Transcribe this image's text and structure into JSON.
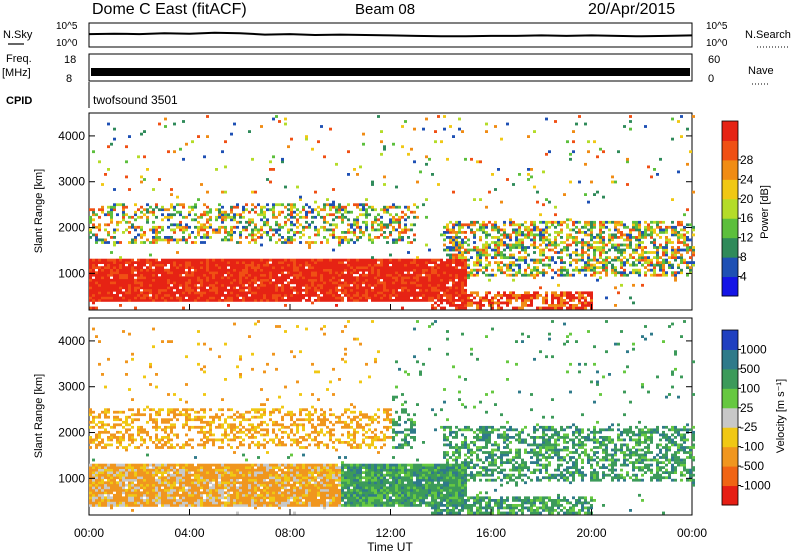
{
  "header": {
    "radar": "Dome C East (fitACF)",
    "beam": "Beam 08",
    "date": "20/Apr/2015"
  },
  "top_panels": {
    "nsky_label": "N.Sky",
    "nsearch_label": "N.Search",
    "freq_label": "Freq.",
    "freq_unit": "[MHz]",
    "nave_label": "Nave",
    "cpid_label": "CPID",
    "cpid_value": "twofsound 3501"
  },
  "chart_data": [
    {
      "type": "line",
      "title": "N.Sky / N.Search",
      "ylabel_left": "N.Sky",
      "ylabel_right": "N.Search",
      "ytick_labels": [
        "10^5",
        "10^0"
      ],
      "ylim": [
        0,
        5
      ],
      "x_hours": [
        0,
        1,
        2,
        3,
        4,
        5,
        6,
        7,
        8,
        9,
        10,
        11,
        12,
        13,
        14,
        15,
        16,
        17,
        18,
        19,
        20,
        21,
        22,
        23,
        24
      ],
      "values": [
        2.7,
        2.8,
        2.7,
        2.9,
        2.8,
        3.0,
        2.9,
        2.6,
        2.7,
        2.5,
        2.6,
        2.5,
        2.4,
        2.3,
        2.2,
        2.2,
        2.3,
        2.3,
        2.4,
        2.3,
        2.4,
        2.3,
        2.2,
        2.3,
        2.4
      ]
    },
    {
      "type": "line",
      "title": "Freq / Nave",
      "ylabel_left": "[MHz]",
      "ylabel_right": "Nave",
      "left_ticks": [
        "18",
        "8"
      ],
      "right_ticks": [
        "60",
        "0"
      ],
      "freq_range": [
        8,
        18
      ],
      "nave_range": [
        0,
        60
      ],
      "freq_level": 11
    },
    {
      "type": "heatmap",
      "title": "Power",
      "ylabel": "Slant Range [km]",
      "xlabel": "Time UT",
      "ylim": [
        200,
        4500
      ],
      "xlim": [
        0,
        24
      ],
      "yticks": [
        1000,
        2000,
        3000,
        4000
      ],
      "colorbar_label": "Power [dB]",
      "colorbar_ticks": [
        "4",
        "8",
        "12",
        "16",
        "20",
        "24",
        "28"
      ],
      "colorbar_colors": [
        "#1414e6",
        "#1e50b4",
        "#2f8a5a",
        "#5cbf3c",
        "#b4dc28",
        "#f0c814",
        "#f08c14",
        "#f05014",
        "#e62314"
      ]
    },
    {
      "type": "heatmap",
      "title": "Velocity",
      "ylabel": "Slant Range [km]",
      "xlabel": "Time UT",
      "ylim": [
        200,
        4500
      ],
      "xlim": [
        0,
        24
      ],
      "yticks": [
        1000,
        2000,
        3000,
        4000
      ],
      "colorbar_label": "Velocity [m s⁻¹]",
      "colorbar_ticks": [
        "1000",
        "500",
        "100",
        "25",
        "-25",
        "-100",
        "-500",
        "-1000"
      ],
      "colorbar_colors": [
        "#2040c0",
        "#2f7a8a",
        "#3c9a5a",
        "#66c840",
        "#c8c8c8",
        "#f0c814",
        "#f0961e",
        "#f06414",
        "#e61e14"
      ]
    }
  ],
  "x_axis": {
    "ticks": [
      "00:00",
      "04:00",
      "08:00",
      "12:00",
      "16:00",
      "20:00",
      "00:00"
    ],
    "label": "Time UT"
  }
}
